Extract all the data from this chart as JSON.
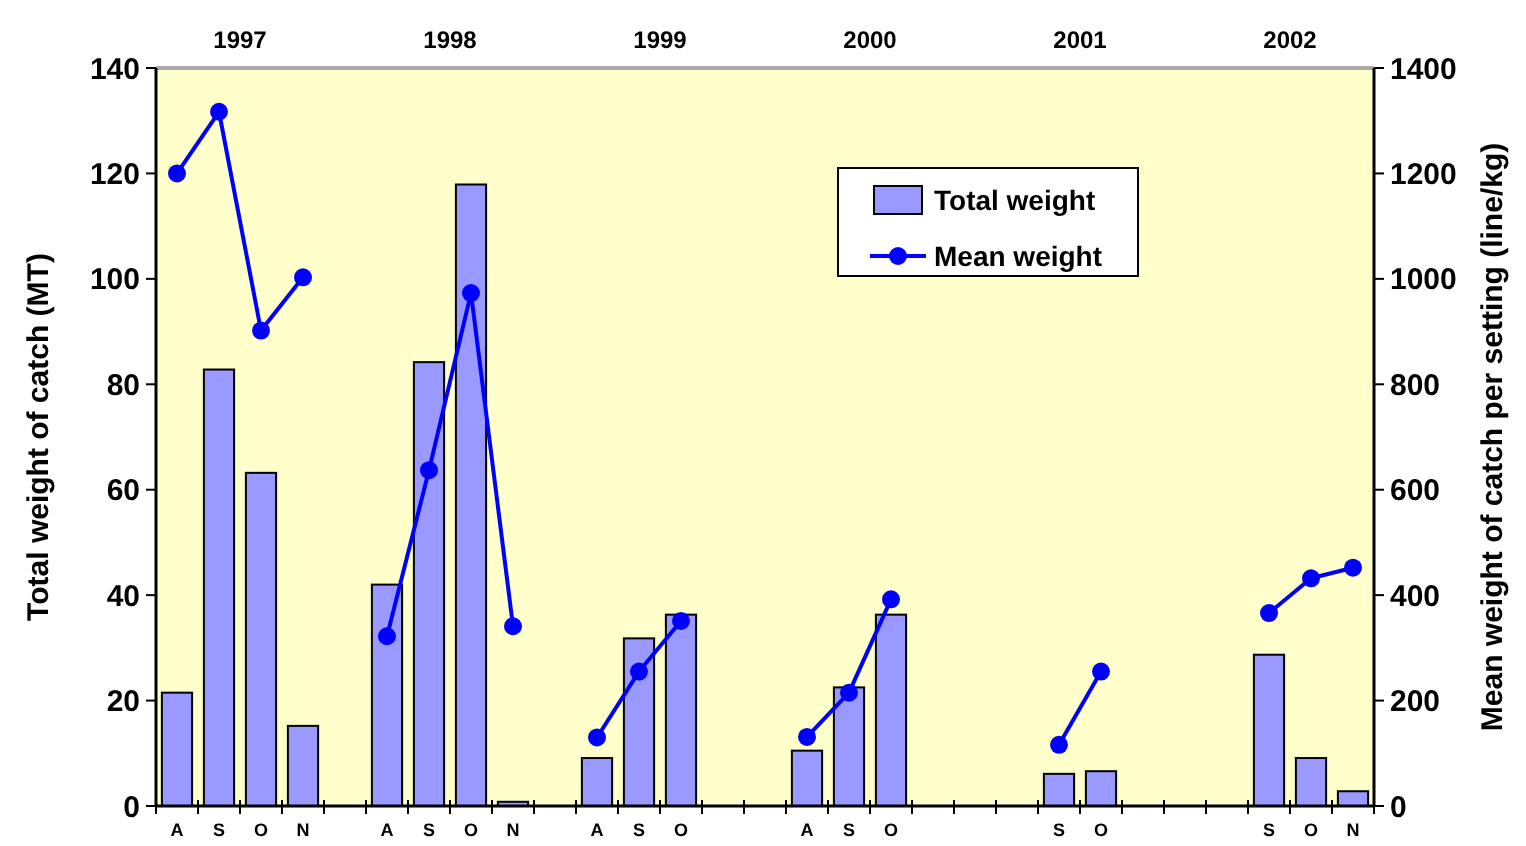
{
  "chart_data": {
    "type": "bar",
    "categories": [
      "A",
      "S",
      "O",
      "N",
      null,
      "A",
      "S",
      "O",
      "N",
      null,
      "A",
      "S",
      "O",
      null,
      null,
      "A",
      "S",
      "O",
      null,
      null,
      null,
      "S",
      "O",
      null,
      null,
      null,
      "S",
      "O",
      "N"
    ],
    "series": [
      {
        "name": "Total weight",
        "color": "#9999ff",
        "values": [
          21.5,
          82.8,
          63.2,
          15.2,
          null,
          42,
          84.2,
          117.9,
          0.8,
          null,
          9.1,
          31.8,
          36.3,
          null,
          null,
          10.5,
          22.5,
          36.3,
          null,
          null,
          null,
          6.1,
          6.6,
          null,
          null,
          null,
          28.7,
          9.1,
          2.8
        ]
      },
      {
        "name": "Mean weight",
        "type": "line",
        "axis": "y2",
        "color": "#0000ff",
        "marker": "circle",
        "values": [
          1200,
          1317,
          902,
          1003,
          null,
          322,
          637,
          973,
          341,
          null,
          130,
          255,
          351,
          null,
          null,
          131,
          215,
          392,
          null,
          null,
          null,
          116,
          255,
          null,
          null,
          null,
          366,
          432,
          452
        ]
      }
    ],
    "annotations": [
      "1997",
      "1998",
      "1999",
      "2000",
      "2001",
      "2002"
    ],
    "ylabel": "Total weight of catch (MT)",
    "y2label": "Mean weight of catch per setting (line/kg)",
    "ylim": [
      0,
      140
    ],
    "yticks": [
      0,
      20,
      40,
      60,
      80,
      100,
      120,
      140
    ],
    "y2lim": [
      0,
      1400
    ],
    "y2ticks": [
      0,
      200,
      400,
      600,
      800,
      1000,
      1200,
      1400
    ],
    "legend": "top right",
    "grid": false
  }
}
